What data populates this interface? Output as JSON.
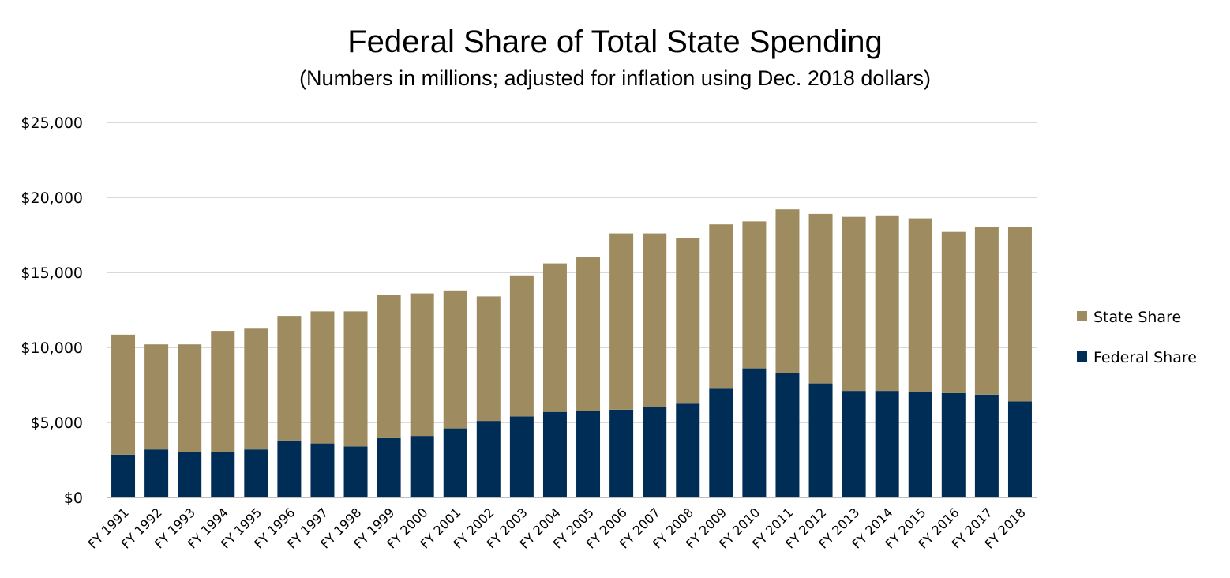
{
  "chart_data": {
    "type": "bar",
    "stacked": true,
    "title": "Federal Share of Total State Spending",
    "subtitle": "(Numbers in millions; adjusted for inflation using Dec. 2018 dollars)",
    "xlabel": "",
    "ylabel": "",
    "ylim": [
      0,
      25000
    ],
    "yticks": [
      0,
      5000,
      10000,
      15000,
      20000,
      25000
    ],
    "ytick_labels": [
      "$0",
      "$5,000",
      "$10,000",
      "$15,000",
      "$20,000",
      "$25,000"
    ],
    "grid": true,
    "legend_position": "right",
    "categories": [
      "FY 1991",
      "FY 1992",
      "FY 1993",
      "FY 1994",
      "FY 1995",
      "FY 1996",
      "FY 1997",
      "FY 1998",
      "FY 1999",
      "FY 2000",
      "FY 2001",
      "FY 2002",
      "FY 2003",
      "FY 2004",
      "FY 2005",
      "FY 2006",
      "FY 2007",
      "FY 2008",
      "FY 2009",
      "FY 2010",
      "FY 2011",
      "FY 2012",
      "FY 2013",
      "FY 2014",
      "FY 2015",
      "FY 2016",
      "FY 2017",
      "FY 2018"
    ],
    "series": [
      {
        "name": "Federal Share",
        "color": "#002D56",
        "values": [
          2850,
          3200,
          3000,
          3000,
          3200,
          3800,
          3600,
          3400,
          3950,
          4100,
          4600,
          5100,
          5400,
          5700,
          5750,
          5850,
          6000,
          6250,
          7250,
          8600,
          8300,
          7600,
          7100,
          7100,
          7000,
          6950,
          6850,
          6400
        ]
      },
      {
        "name": "State Share",
        "color": "#9E8C60",
        "values": [
          8000,
          7000,
          7200,
          8100,
          8050,
          8300,
          8800,
          9000,
          9550,
          9500,
          9200,
          8300,
          9400,
          9900,
          10250,
          11750,
          11600,
          11050,
          10950,
          9800,
          10900,
          11300,
          11600,
          11700,
          11600,
          10750,
          11150,
          11600
        ]
      }
    ],
    "legend_order": [
      "State Share",
      "Federal Share"
    ]
  }
}
